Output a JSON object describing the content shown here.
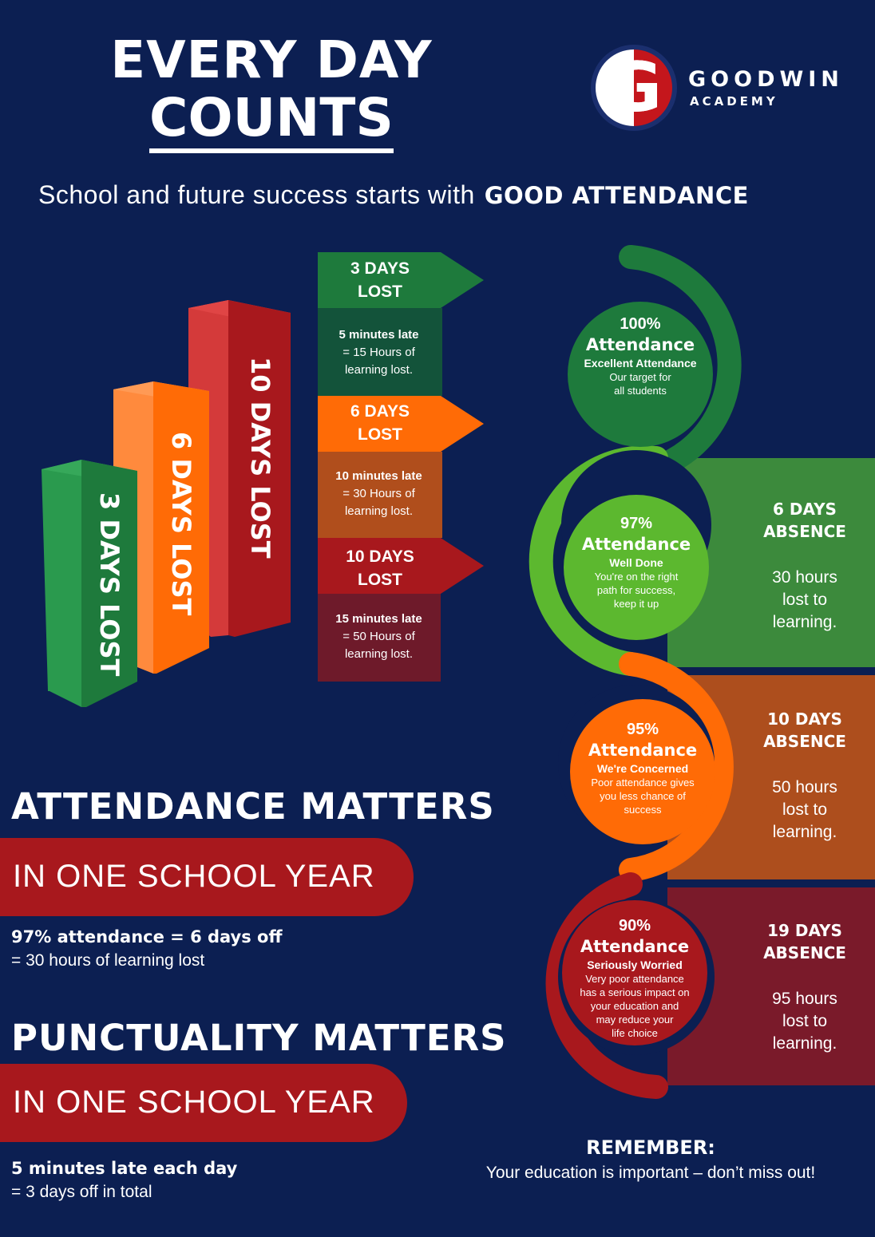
{
  "header": {
    "title_line1": "EVERY DAY",
    "title_line2": "COUNTS",
    "tagline_prefix": "School and future success starts with",
    "tagline_bold": "GOOD ATTENDANCE"
  },
  "logo": {
    "letter": "G",
    "name": "GOODWIN",
    "sub": "ACADEMY"
  },
  "bars": [
    {
      "label": "3 DAYS LOST",
      "days": 3,
      "color": "#1e8742"
    },
    {
      "label": "6 DAYS LOST",
      "days": 6,
      "color": "#ff6b06"
    },
    {
      "label": "10 DAYS LOST",
      "days": 10,
      "color": "#b71c22"
    }
  ],
  "late_tags": [
    {
      "tag_line1": "3 DAYS",
      "tag_line2": "LOST",
      "late": "5 minutes late",
      "hours_line1": "= 15 Hours of",
      "hours_line2": "learning lost."
    },
    {
      "tag_line1": "6 DAYS",
      "tag_line2": "LOST",
      "late": "10 minutes late",
      "hours_line1": "= 30 Hours of",
      "hours_line2": "learning lost."
    },
    {
      "tag_line1": "10 DAYS",
      "tag_line2": "LOST",
      "late": "15 minutes late",
      "hours_line1": "= 50 Hours of",
      "hours_line2": "learning lost."
    }
  ],
  "levels": [
    {
      "pct": "100%",
      "attendance": "Attendance",
      "status": "Excellent Attendance",
      "desc_lines": [
        "Our target for",
        "all students"
      ]
    },
    {
      "pct": "97%",
      "attendance": "Attendance",
      "status": "Well Done",
      "desc_lines": [
        "You're on the right",
        "path for success,",
        "keep it up"
      ],
      "absence_days": "6 DAYS",
      "absence_word": "ABSENCE",
      "hours_lines": [
        "30 hours",
        "lost to",
        "learning."
      ]
    },
    {
      "pct": "95%",
      "attendance": "Attendance",
      "status": "We're Concerned",
      "desc_lines": [
        "Poor attendance gives",
        "you less chance of",
        "success"
      ],
      "absence_days": "10 DAYS",
      "absence_word": "ABSENCE",
      "hours_lines": [
        "50 hours",
        "lost to",
        "learning."
      ]
    },
    {
      "pct": "90%",
      "attendance": "Attendance",
      "status": "Seriously Worried",
      "desc_lines": [
        "Very poor attendance",
        "has a serious impact on",
        "your education and",
        "may reduce your",
        "life choice"
      ],
      "absence_days": "19 DAYS",
      "absence_word": "ABSENCE",
      "hours_lines": [
        "95 hours",
        "lost to",
        "learning."
      ]
    }
  ],
  "attendance_matters": {
    "heading": "ATTENDANCE MATTERS",
    "pill": "IN ONE SCHOOL YEAR",
    "bold": "97% attendance = 6 days off",
    "text": "= 30 hours of learning lost"
  },
  "punctuality_matters": {
    "heading": "PUNCTUALITY MATTERS",
    "pill": "IN ONE SCHOOL YEAR",
    "bold": "5 minutes late each day",
    "text": "= 3 days off in total"
  },
  "remember": {
    "heading": "REMEMBER:",
    "text": "Your education is important – don’t miss out!"
  },
  "colors": {
    "background": "#0c1f52",
    "green_dark": "#1e7a3c",
    "green_light": "#5cb82f",
    "orange": "#ff6b06",
    "red": "#a81a1f",
    "maroon": "#7a1a2a"
  }
}
